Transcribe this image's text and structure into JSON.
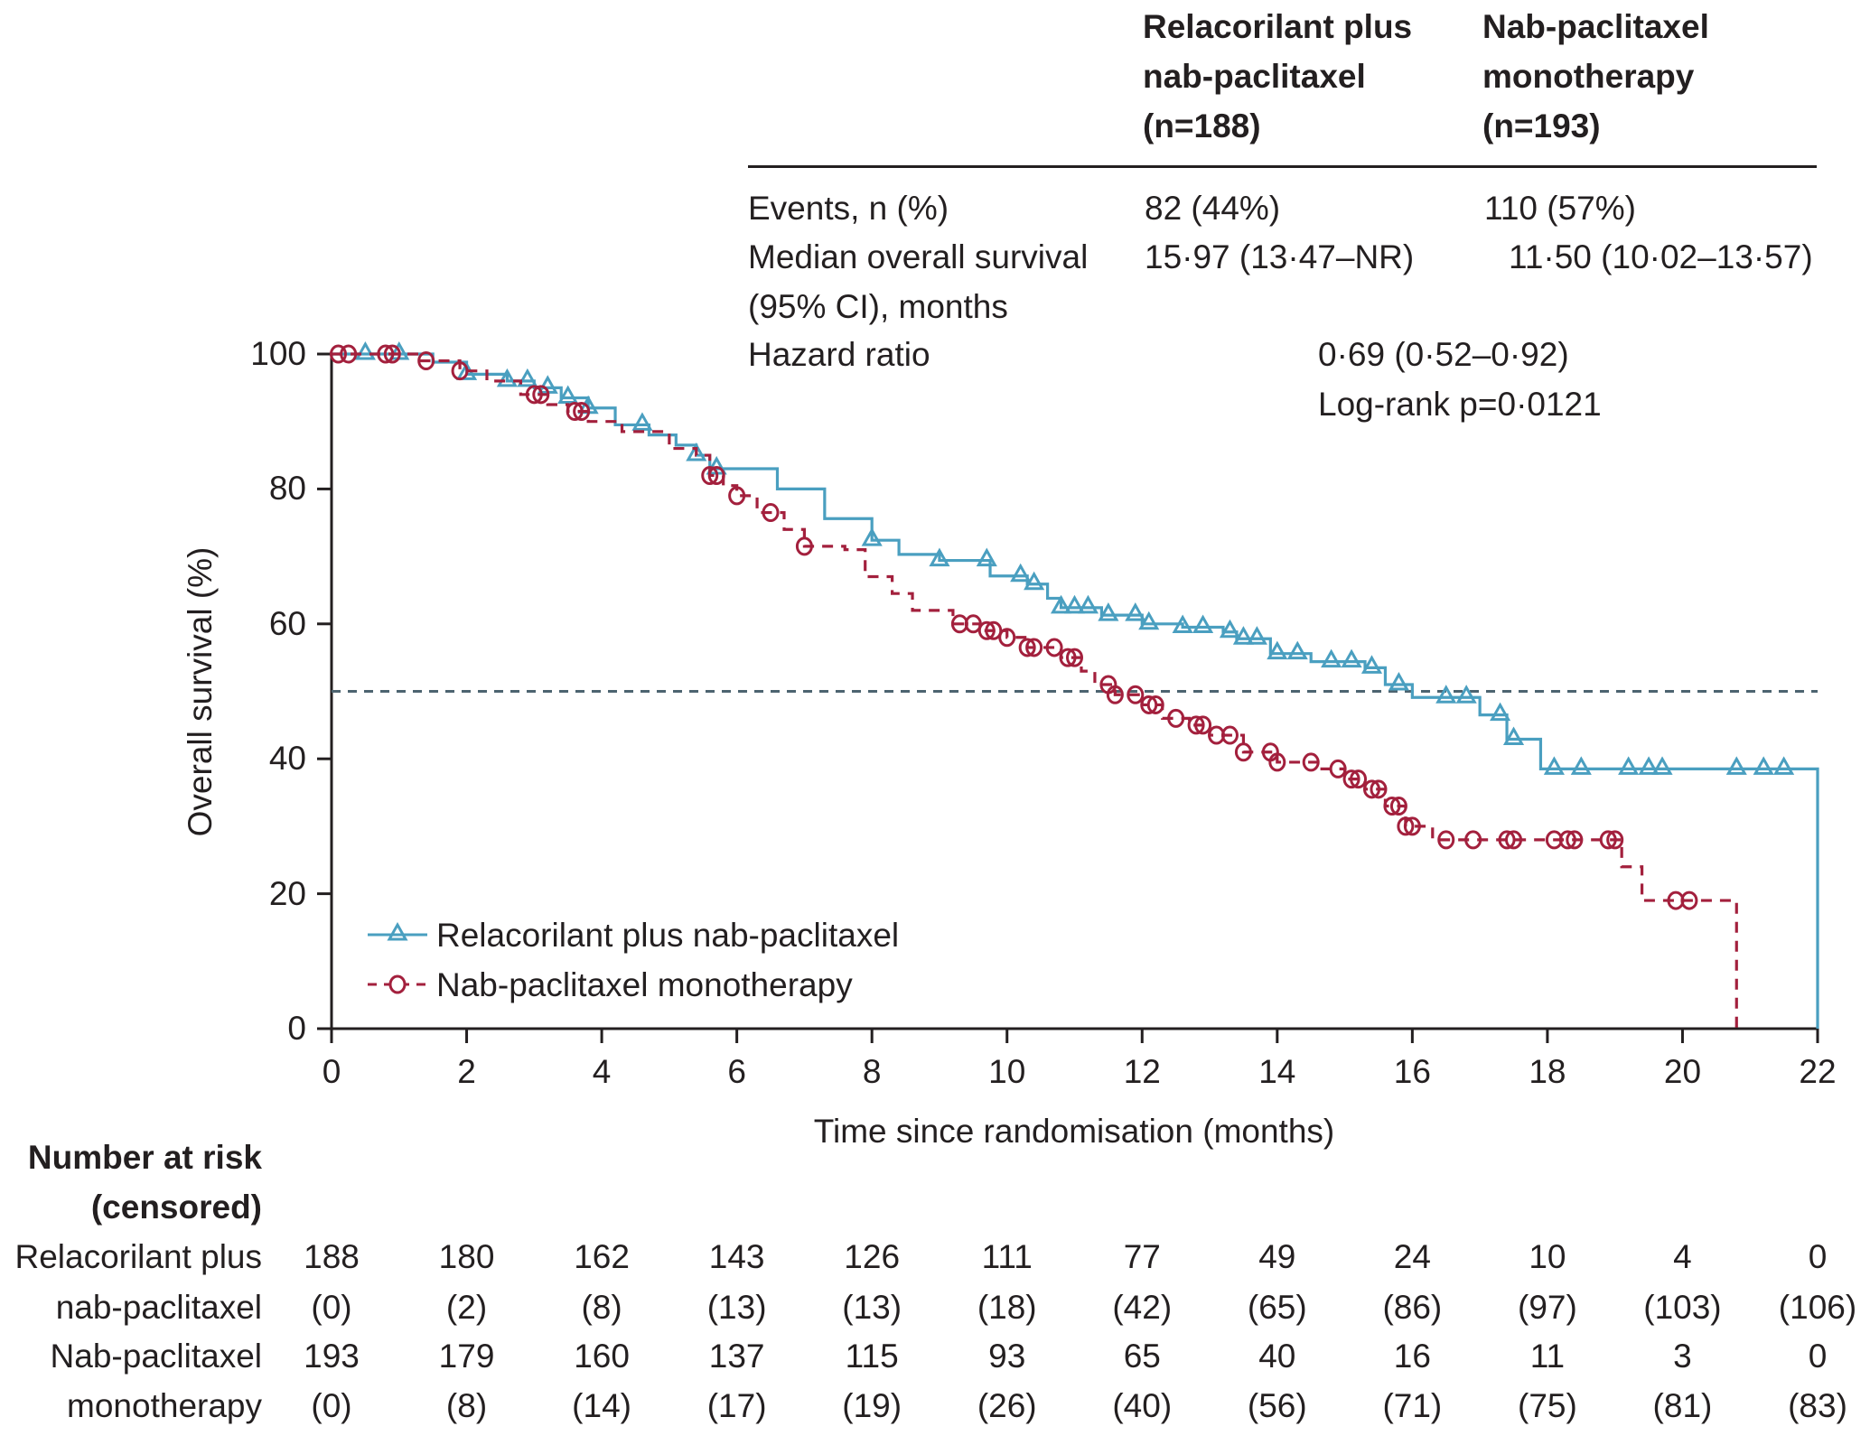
{
  "table": {
    "headers": [
      "Relacorilant plus\nnab-paclitaxel\n(n=188)",
      "Nab-paclitaxel\nmonotherapy\n(n=193)"
    ],
    "header_lines": [
      [
        "Relacorilant plus",
        "nab-paclitaxel",
        "(n=188)"
      ],
      [
        "Nab-paclitaxel",
        "monotherapy",
        "(n=193)"
      ]
    ],
    "events_label": "Events, n (%)",
    "events": [
      "82 (44%)",
      "110 (57%)"
    ],
    "median_label_1": "Median overall survival",
    "median_label_2": "(95% CI), months",
    "median": [
      "15·97 (13·47–NR)",
      "11·50 (10·02–13·57)"
    ],
    "hr_label": "Hazard ratio",
    "hr_value": "0·69 (0·52–0·92)",
    "logrank": "Log-rank p=0·0121"
  },
  "chart_data": {
    "type": "line",
    "subtype": "kaplan-meier",
    "xlabel": "Time since randomisation (months)",
    "ylabel": "Overall survival (%)",
    "xlim": [
      0,
      22
    ],
    "ylim": [
      0,
      100
    ],
    "xticks": [
      "0",
      "2",
      "4",
      "6",
      "8",
      "10",
      "12",
      "14",
      "16",
      "18",
      "20",
      "22"
    ],
    "yticks": [
      "0",
      "20",
      "40",
      "60",
      "80",
      "100"
    ],
    "reference_line_y": 50,
    "legend_placement": "bottom-left",
    "colors": {
      "relacorilant": "#4a9fc0",
      "nab": "#a3203d",
      "reference": "#4d6470"
    },
    "series": [
      {
        "name": "Relacorilant plus nab-paclitaxel",
        "style": "solid",
        "marker": "triangle",
        "steps": [
          [
            0,
            100
          ],
          [
            1.5,
            98.8
          ],
          [
            2,
            97
          ],
          [
            2.6,
            96
          ],
          [
            3,
            95
          ],
          [
            3.4,
            93.5
          ],
          [
            3.8,
            92
          ],
          [
            4.2,
            89.5
          ],
          [
            4.7,
            88
          ],
          [
            5.1,
            86.5
          ],
          [
            5.4,
            85
          ],
          [
            5.6,
            83
          ],
          [
            6.6,
            80
          ],
          [
            7.3,
            75.6
          ],
          [
            8,
            72.4
          ],
          [
            8.4,
            70.3
          ],
          [
            9,
            69.4
          ],
          [
            9.75,
            67.1
          ],
          [
            10.3,
            65.9
          ],
          [
            10.6,
            63.8
          ],
          [
            10.8,
            62.4
          ],
          [
            11.4,
            61.3
          ],
          [
            12,
            60
          ],
          [
            12.6,
            59.5
          ],
          [
            13.2,
            58.8
          ],
          [
            13.4,
            57.8
          ],
          [
            13.9,
            55.6
          ],
          [
            14.5,
            54.4
          ],
          [
            15.3,
            53.5
          ],
          [
            15.6,
            51
          ],
          [
            16,
            49.1
          ],
          [
            17,
            46.5
          ],
          [
            17.4,
            42.9
          ],
          [
            17.9,
            38.5
          ],
          [
            22,
            0
          ]
        ],
        "censored": [
          0.5,
          1.0,
          2,
          2.6,
          2.9,
          3.2,
          3.5,
          3.8,
          4.6,
          5.4,
          5.7,
          8,
          9,
          9.7,
          10.2,
          10.4,
          10.8,
          11,
          11.2,
          11.5,
          11.9,
          12.1,
          12.6,
          12.9,
          13.3,
          13.5,
          13.7,
          14,
          14.3,
          14.8,
          15.1,
          15.4,
          15.8,
          16.5,
          16.8,
          17.3,
          17.5,
          18.1,
          18.5,
          19.2,
          19.5,
          19.7,
          20.8,
          21.2,
          21.5
        ]
      },
      {
        "name": "Nab-paclitaxel monotherapy",
        "style": "dashed",
        "marker": "circle",
        "steps": [
          [
            0,
            100
          ],
          [
            1.3,
            99
          ],
          [
            1.9,
            97.5
          ],
          [
            2.3,
            96
          ],
          [
            2.8,
            94
          ],
          [
            3.2,
            92.5
          ],
          [
            3.5,
            91.5
          ],
          [
            3.8,
            90
          ],
          [
            4.3,
            88.5
          ],
          [
            5,
            86
          ],
          [
            5.4,
            85
          ],
          [
            5.6,
            82
          ],
          [
            5.8,
            80.5
          ],
          [
            6,
            79
          ],
          [
            6.3,
            76.5
          ],
          [
            6.7,
            74
          ],
          [
            7,
            71.5
          ],
          [
            7.6,
            71
          ],
          [
            7.9,
            67
          ],
          [
            8.3,
            64.5
          ],
          [
            8.6,
            62
          ],
          [
            9.2,
            60
          ],
          [
            9.6,
            59
          ],
          [
            10,
            58
          ],
          [
            10.3,
            56.5
          ],
          [
            10.8,
            55
          ],
          [
            11.1,
            53
          ],
          [
            11.3,
            51
          ],
          [
            11.6,
            49.5
          ],
          [
            12,
            48
          ],
          [
            12.3,
            46
          ],
          [
            12.7,
            45
          ],
          [
            13,
            43.5
          ],
          [
            13.5,
            41
          ],
          [
            14,
            39.5
          ],
          [
            14.6,
            38.5
          ],
          [
            15,
            37
          ],
          [
            15.3,
            35.5
          ],
          [
            15.6,
            33
          ],
          [
            15.9,
            30
          ],
          [
            16.3,
            28
          ],
          [
            19.1,
            24
          ],
          [
            19.4,
            19
          ],
          [
            20.8,
            0
          ]
        ],
        "censored": [
          0.1,
          0.25,
          0.8,
          0.9,
          1.4,
          1.9,
          3.0,
          3.1,
          3.6,
          3.7,
          5.6,
          5.7,
          6.0,
          6.5,
          7.0,
          9.3,
          9.5,
          9.7,
          9.8,
          10.0,
          10.3,
          10.4,
          10.7,
          10.9,
          11.0,
          11.5,
          11.6,
          11.9,
          12.1,
          12.2,
          12.5,
          12.8,
          12.9,
          13.1,
          13.3,
          13.5,
          13.9,
          14.0,
          14.5,
          14.9,
          15.1,
          15.2,
          15.4,
          15.5,
          15.7,
          15.8,
          15.9,
          16.0,
          16.5,
          16.9,
          17.4,
          17.5,
          18.1,
          18.3,
          18.4,
          18.9,
          19.0,
          19.9,
          20.1
        ]
      }
    ]
  },
  "legend": [
    "Relacorilant plus nab-paclitaxel",
    "Nab-paclitaxel monotherapy"
  ],
  "risk": {
    "title_1": "Number at risk",
    "title_2": "(censored)",
    "rows": [
      {
        "label": "Relacorilant plus",
        "values": [
          "188",
          "180",
          "162",
          "143",
          "126",
          "111",
          "77",
          "49",
          "24",
          "10",
          "4",
          "0"
        ]
      },
      {
        "label": "nab-paclitaxel",
        "values": [
          "(0)",
          "(2)",
          "(8)",
          "(13)",
          "(13)",
          "(18)",
          "(42)",
          "(65)",
          "(86)",
          "(97)",
          "(103)",
          "(106)"
        ]
      },
      {
        "label": "Nab-paclitaxel",
        "values": [
          "193",
          "179",
          "160",
          "137",
          "115",
          "93",
          "65",
          "40",
          "16",
          "11",
          "3",
          "0"
        ]
      },
      {
        "label": "monotherapy",
        "values": [
          "(0)",
          "(8)",
          "(14)",
          "(17)",
          "(19)",
          "(26)",
          "(40)",
          "(56)",
          "(71)",
          "(75)",
          "(81)",
          "(83)"
        ]
      }
    ]
  }
}
